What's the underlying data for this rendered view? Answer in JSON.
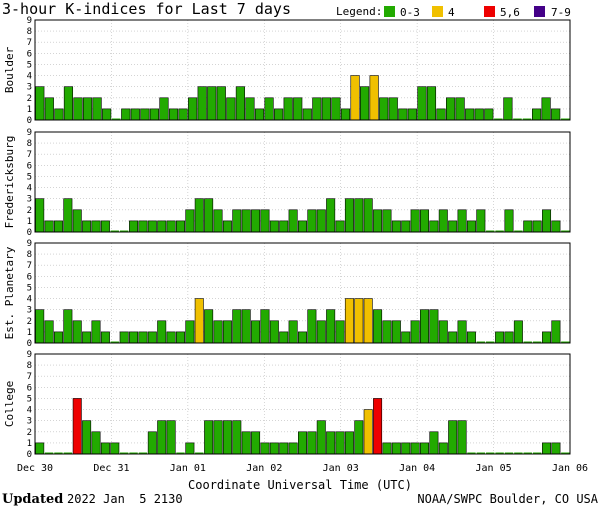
{
  "title": "3-hour K-indices for Last 7 days",
  "legend": {
    "label": "Legend:",
    "items": [
      {
        "label": "0-3",
        "color": "#22aa00"
      },
      {
        "label": "4",
        "color": "#f0c000"
      },
      {
        "label": "5,6",
        "color": "#ee0000"
      },
      {
        "label": "7-9",
        "color": "#440088"
      }
    ]
  },
  "footer": {
    "updated_label": "Updated",
    "updated_value": "2022 Jan  5 2130",
    "source": "NOAA/SWPC Boulder, CO USA"
  },
  "chart_data": {
    "type": "bar",
    "xlabel": "Coordinate Universal Time (UTC)",
    "x_ticks": [
      "Dec 30",
      "Dec 31",
      "Jan 01",
      "Jan 02",
      "Jan 03",
      "Jan 04",
      "Jan 05",
      "Jan 06"
    ],
    "y_ticks": [
      "0",
      "1",
      "2",
      "3",
      "4",
      "5",
      "6",
      "7",
      "8",
      "9"
    ],
    "ylim": [
      0,
      9
    ],
    "series": [
      {
        "name": "Boulder",
        "values": [
          3,
          2,
          1,
          3,
          2,
          2,
          2,
          1,
          0,
          1,
          1,
          1,
          1,
          2,
          1,
          1,
          2,
          3,
          3,
          3,
          2,
          3,
          2,
          1,
          2,
          1,
          2,
          2,
          1,
          2,
          2,
          2,
          1,
          4,
          3,
          4,
          2,
          2,
          1,
          1,
          3,
          3,
          1,
          2,
          2,
          1,
          1,
          1,
          0,
          2,
          0,
          0,
          1,
          2,
          1,
          0
        ]
      },
      {
        "name": "Fredericksburg",
        "values": [
          3,
          1,
          1,
          3,
          2,
          1,
          1,
          1,
          0,
          0,
          1,
          1,
          1,
          1,
          1,
          1,
          2,
          3,
          3,
          2,
          1,
          2,
          2,
          2,
          2,
          1,
          1,
          2,
          1,
          2,
          2,
          3,
          1,
          3,
          3,
          3,
          2,
          2,
          1,
          1,
          2,
          2,
          1,
          2,
          1,
          2,
          1,
          2,
          0,
          0,
          2,
          0,
          1,
          1,
          2,
          1,
          0
        ]
      },
      {
        "name": "Est. Planetary",
        "values": [
          3,
          2,
          1,
          3,
          2,
          1,
          2,
          1,
          0,
          1,
          1,
          1,
          1,
          2,
          1,
          1,
          2,
          4,
          3,
          2,
          2,
          3,
          3,
          2,
          3,
          2,
          1,
          2,
          1,
          3,
          2,
          3,
          2,
          4,
          4,
          4,
          3,
          2,
          2,
          1,
          2,
          3,
          3,
          2,
          1,
          2,
          1,
          0,
          0,
          1,
          1,
          2,
          0,
          0,
          1,
          2,
          0
        ]
      },
      {
        "name": "College",
        "values": [
          1,
          0,
          0,
          0,
          5,
          3,
          2,
          1,
          1,
          0,
          0,
          0,
          2,
          3,
          3,
          0,
          1,
          0,
          3,
          3,
          3,
          3,
          2,
          2,
          1,
          1,
          1,
          1,
          2,
          2,
          3,
          2,
          2,
          2,
          3,
          4,
          5,
          1,
          1,
          1,
          1,
          1,
          2,
          1,
          3,
          3,
          0,
          0,
          0,
          0,
          0,
          0,
          0,
          0,
          1,
          1,
          0
        ]
      }
    ]
  }
}
